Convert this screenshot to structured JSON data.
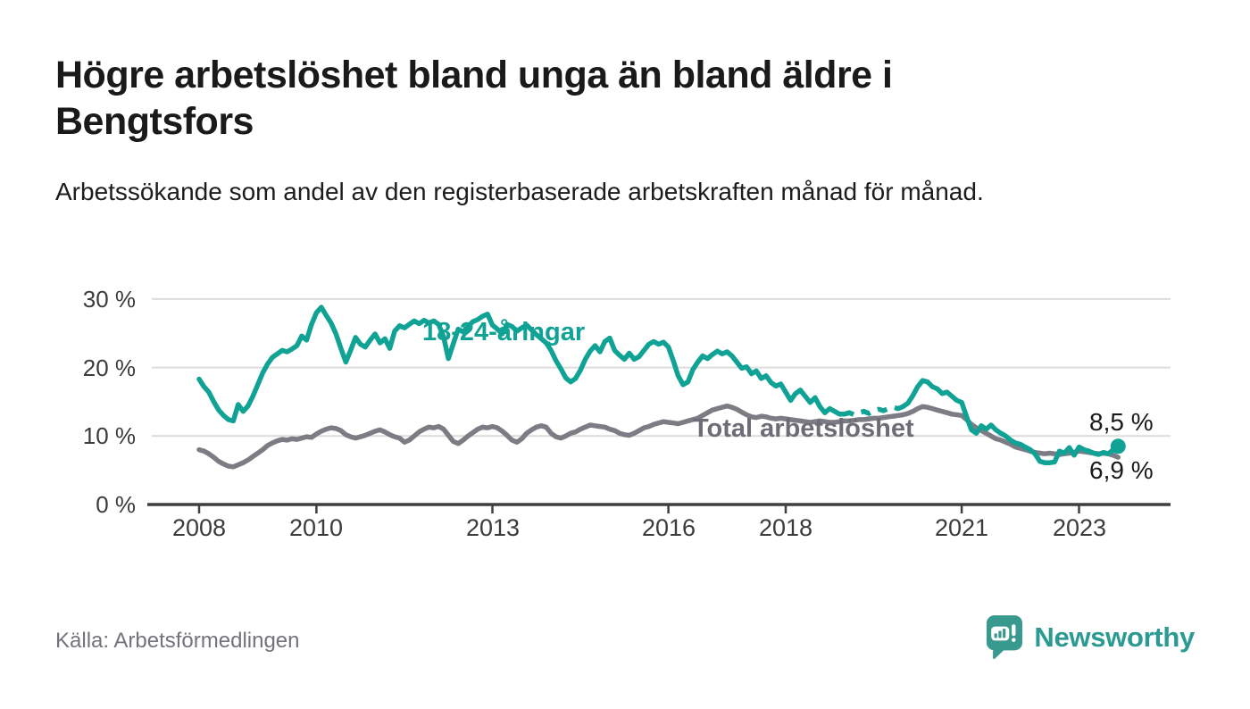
{
  "title": "Högre arbetslöshet bland unga än bland äldre i Bengtsfors",
  "subtitle": "Arbetssökande som andel av den registerbaserade arbetskraften månad för månad.",
  "source": "Källa: Arbetsförmedlingen",
  "brand": {
    "name": "Newsworthy",
    "icon": "bar-chart-speech-bubble",
    "color": "#2b9a93"
  },
  "chart_data": {
    "type": "line",
    "title": "Högre arbetslöshet bland unga än bland äldre i Bengtsfors",
    "ylabel": "",
    "xlabel": "",
    "grid": "horizontal",
    "ylim": [
      0,
      30
    ],
    "x_start": "2008-01",
    "x_end": "2023-09",
    "x_interval": "monthly",
    "x_ticks": [
      2008,
      2010,
      2013,
      2016,
      2018,
      2021,
      2023
    ],
    "x_tick_labels": [
      "2008",
      "2010",
      "2013",
      "2016",
      "2018",
      "2021",
      "2023"
    ],
    "y_ticks": [
      {
        "value": 30,
        "label": "30 %"
      },
      {
        "value": 20,
        "label": "20 %"
      },
      {
        "value": 10,
        "label": "10 %"
      },
      {
        "value": 0,
        "label": "0 %"
      }
    ],
    "series": [
      {
        "name": "18-24-åringar",
        "color": "#10a294",
        "last_label": "8,5 %",
        "end_dot": true,
        "dashed_range": {
          "from": "2019-01",
          "to": "2019-12"
        },
        "values": [
          18.3,
          17.2,
          16.4,
          15.0,
          13.8,
          13.0,
          12.4,
          12.2,
          14.6,
          13.6,
          14.4,
          15.8,
          17.5,
          19.2,
          20.5,
          21.5,
          22.0,
          22.5,
          22.3,
          22.7,
          23.2,
          24.6,
          24.0,
          26.3,
          28.0,
          28.8,
          27.6,
          26.5,
          24.9,
          22.8,
          20.8,
          22.5,
          24.4,
          23.4,
          23.0,
          24.0,
          24.9,
          23.6,
          24.2,
          22.8,
          25.3,
          26.1,
          25.8,
          26.3,
          26.8,
          26.4,
          26.9,
          26.5,
          26.8,
          26.3,
          24.5,
          21.3,
          23.5,
          25.6,
          25.2,
          26.0,
          26.7,
          27.0,
          27.5,
          27.8,
          26.2,
          25.6,
          24.9,
          26.3,
          26.0,
          25.3,
          25.8,
          26.2,
          25.5,
          24.8,
          24.2,
          23.6,
          22.5,
          21.0,
          19.8,
          18.5,
          17.9,
          18.4,
          19.6,
          21.2,
          22.4,
          23.2,
          22.3,
          23.8,
          24.3,
          22.5,
          21.8,
          21.2,
          22.1,
          21.2,
          21.6,
          22.5,
          23.4,
          23.8,
          23.4,
          23.7,
          23.0,
          21.0,
          18.8,
          17.5,
          17.9,
          19.7,
          20.8,
          21.7,
          21.3,
          21.9,
          22.4,
          22.0,
          22.3,
          21.7,
          20.8,
          19.9,
          20.1,
          19.1,
          19.5,
          18.4,
          18.8,
          17.8,
          17.3,
          17.6,
          16.4,
          15.2,
          16.2,
          16.7,
          15.8,
          14.9,
          15.6,
          14.3,
          13.4,
          14.0,
          13.6,
          13.2,
          13.2,
          13.4,
          13.1,
          13.4,
          13.6,
          13.3,
          13.7,
          13.9,
          13.7,
          14.0,
          14.2,
          14.0,
          14.3,
          14.8,
          15.9,
          17.2,
          18.1,
          17.9,
          17.2,
          16.9,
          16.2,
          16.4,
          15.8,
          15.2,
          14.9,
          12.8,
          10.9,
          10.4,
          11.5,
          11.0,
          11.6,
          10.9,
          10.4,
          10.0,
          9.4,
          9.0,
          8.8,
          8.4,
          8.0,
          7.4,
          6.3,
          6.1,
          6.1,
          6.2,
          7.8,
          7.5,
          8.3,
          7.2,
          8.4,
          8.0,
          7.8,
          7.5,
          7.3,
          7.6,
          7.4,
          8.0,
          8.5
        ]
      },
      {
        "name": "Total arbetslöshet",
        "color": "#7c7c84",
        "last_label": "6,9 %",
        "end_dot": false,
        "values": [
          8.0,
          7.8,
          7.4,
          6.9,
          6.3,
          5.9,
          5.6,
          5.5,
          5.8,
          6.1,
          6.5,
          7.0,
          7.5,
          8.0,
          8.6,
          9.0,
          9.3,
          9.5,
          9.4,
          9.6,
          9.5,
          9.7,
          9.9,
          9.8,
          10.3,
          10.7,
          11.0,
          11.2,
          11.1,
          10.8,
          10.2,
          9.9,
          9.7,
          9.9,
          10.1,
          10.4,
          10.7,
          10.9,
          10.6,
          10.2,
          9.9,
          9.7,
          9.1,
          9.4,
          10.0,
          10.6,
          11.0,
          11.3,
          11.2,
          11.4,
          11.0,
          10.1,
          9.2,
          8.9,
          9.4,
          10.0,
          10.5,
          11.0,
          11.3,
          11.2,
          11.4,
          11.2,
          10.7,
          10.1,
          9.4,
          9.1,
          9.6,
          10.4,
          10.9,
          11.3,
          11.5,
          11.3,
          10.4,
          9.9,
          9.7,
          10.0,
          10.4,
          10.6,
          11.0,
          11.3,
          11.6,
          11.5,
          11.4,
          11.3,
          11.0,
          10.8,
          10.4,
          10.2,
          10.1,
          10.4,
          10.8,
          11.2,
          11.4,
          11.7,
          11.9,
          12.1,
          12.0,
          11.9,
          11.8,
          12.0,
          12.2,
          12.4,
          12.6,
          13.0,
          13.4,
          13.8,
          14.0,
          14.2,
          14.4,
          14.2,
          13.9,
          13.5,
          13.1,
          12.8,
          12.7,
          12.9,
          12.8,
          12.6,
          12.5,
          12.6,
          12.5,
          12.4,
          12.3,
          12.2,
          12.1,
          12.0,
          12.1,
          12.2,
          12.1,
          12.0,
          12.0,
          12.1,
          12.2,
          12.2,
          12.3,
          12.4,
          12.4,
          12.5,
          12.6,
          12.6,
          12.7,
          12.8,
          12.9,
          13.0,
          13.1,
          13.3,
          13.6,
          14.0,
          14.3,
          14.2,
          14.0,
          13.8,
          13.6,
          13.4,
          13.2,
          13.1,
          13.0,
          12.4,
          11.7,
          11.2,
          10.8,
          10.4,
          10.0,
          9.6,
          9.4,
          9.1,
          8.8,
          8.4,
          8.2,
          8.0,
          7.8,
          7.6,
          7.5,
          7.4,
          7.5,
          7.4,
          7.3,
          7.4,
          7.5,
          7.6,
          7.8,
          7.7,
          7.6,
          7.5,
          7.4,
          7.5,
          7.4,
          7.2,
          6.9
        ]
      }
    ]
  }
}
